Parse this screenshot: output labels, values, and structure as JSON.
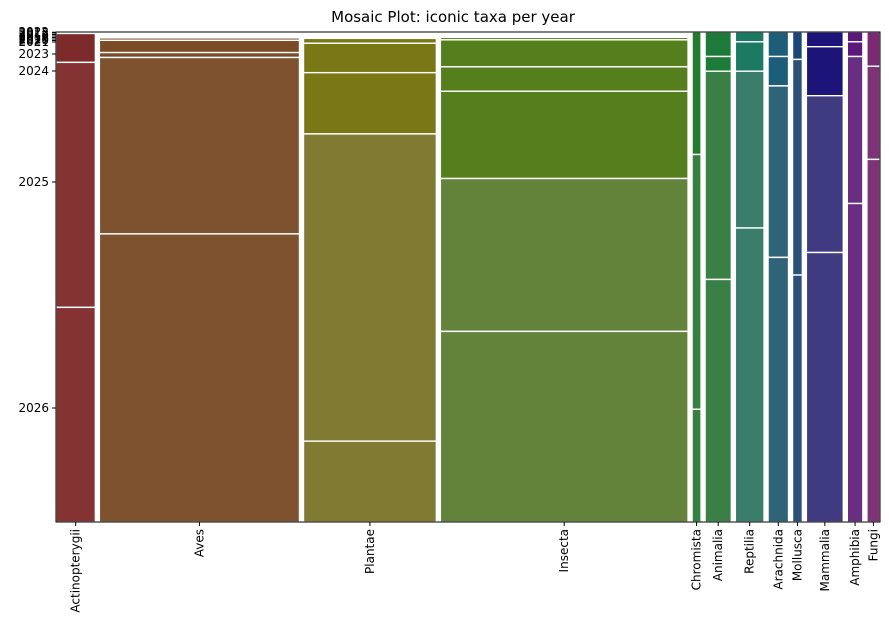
{
  "chart_data": {
    "type": "mosaic",
    "title": "Mosaic Plot: iconic taxa per year",
    "xlabel": "",
    "ylabel": "",
    "categories": [
      "Actinopterygii",
      "Aves",
      "Plantae",
      "Insecta",
      "Chromista",
      "Animalia",
      "Reptilia",
      "Arachnida",
      "Mollusca",
      "Mammalia",
      "Amphibia",
      "Fungi"
    ],
    "y_tick_labels": [
      "2015",
      "2016",
      "2017",
      "2018",
      "2019",
      "2020",
      "2021",
      "2022",
      "2023",
      "2024",
      "2025",
      "2026"
    ],
    "column_widths": [
      0.048,
      0.244,
      0.162,
      0.302,
      0.011,
      0.032,
      0.035,
      0.025,
      0.012,
      0.045,
      0.019,
      0.016
    ],
    "series": [
      {
        "name": "Actinopterygii",
        "color": "#843232",
        "dark_color": "#7c2a2a",
        "years": [
          2022,
          2023,
          2024,
          2025,
          2026
        ],
        "shares": [
          0.001,
          0.002,
          0.059,
          0.5,
          0.438
        ]
      },
      {
        "name": "Aves",
        "color": "#7f522f",
        "dark_color": "#7b4a26",
        "years": [
          2016,
          2017,
          2018,
          2019,
          2020,
          2021,
          2022,
          2023,
          2024,
          2025,
          2026
        ],
        "shares": [
          0.002,
          0.002,
          0.002,
          0.002,
          0.002,
          0.002,
          0.005,
          0.025,
          0.01,
          0.36,
          0.588
        ]
      },
      {
        "name": "Plantae",
        "color": "#807a33",
        "dark_color": "#7a7716",
        "years": [
          2016,
          2017,
          2018,
          2019,
          2020,
          2021,
          2022,
          2023,
          2024,
          2025,
          2026
        ],
        "shares": [
          0.002,
          0.002,
          0.002,
          0.002,
          0.002,
          0.003,
          0.01,
          0.06,
          0.125,
          0.627,
          0.165
        ]
      },
      {
        "name": "Insecta",
        "color": "#63823a",
        "dark_color": "#557e1c",
        "years": [
          2015,
          2016,
          2017,
          2018,
          2019,
          2020,
          2021,
          2022,
          2023,
          2024,
          2025,
          2026
        ],
        "shares": [
          0.001,
          0.002,
          0.002,
          0.002,
          0.002,
          0.002,
          0.005,
          0.055,
          0.05,
          0.178,
          0.312,
          0.389
        ]
      },
      {
        "name": "Chromista",
        "color": "#36803f",
        "dark_color": "#247a2e",
        "years": [
          2024,
          2025,
          2026
        ],
        "shares": [
          0.25,
          0.52,
          0.23
        ]
      },
      {
        "name": "Animalia",
        "color": "#3a7f45",
        "dark_color": "#1d7a38",
        "years": [
          2023,
          2024,
          2025,
          2026
        ],
        "shares": [
          0.05,
          0.03,
          0.425,
          0.495
        ]
      },
      {
        "name": "Reptilia",
        "color": "#3a7d6a",
        "dark_color": "#1b7a61",
        "years": [
          2023,
          2024,
          2025,
          2026
        ],
        "shares": [
          0.02,
          0.06,
          0.32,
          0.6
        ]
      },
      {
        "name": "Arachnida",
        "color": "#2f6478",
        "dark_color": "#1c5d77",
        "years": [
          2023,
          2024,
          2025,
          2026
        ],
        "shares": [
          0.05,
          0.06,
          0.35,
          0.54
        ]
      },
      {
        "name": "Mollusca",
        "color": "#2c5078",
        "dark_color": "#1b4677",
        "years": [
          2024,
          2025,
          2026
        ],
        "shares": [
          0.056,
          0.44,
          0.504
        ]
      },
      {
        "name": "Mammalia",
        "color": "#403a80",
        "dark_color": "#1c1478",
        "years": [
          2023,
          2024,
          2025,
          2026
        ],
        "shares": [
          0.03,
          0.1,
          0.32,
          0.55
        ]
      },
      {
        "name": "Amphibia",
        "color": "#682e80",
        "dark_color": "#5b1a7a",
        "years": [
          2023,
          2024,
          2025,
          2026
        ],
        "shares": [
          0.02,
          0.03,
          0.3,
          0.65
        ]
      },
      {
        "name": "Fungi",
        "color": "#7e3377",
        "dark_color": "#7a2a73",
        "years": [
          2024,
          2025,
          2026
        ],
        "shares": [
          0.07,
          0.19,
          0.74
        ]
      }
    ]
  }
}
